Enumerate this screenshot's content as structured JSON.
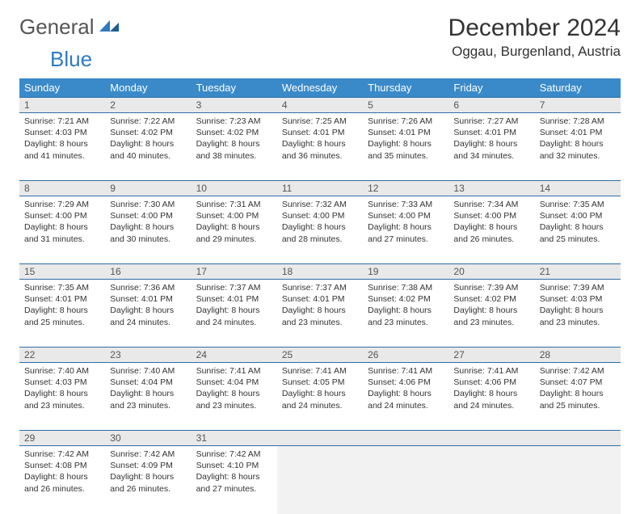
{
  "brand": {
    "general": "General",
    "blue": "Blue"
  },
  "title": "December 2024",
  "location": "Oggau, Burgenland, Austria",
  "colors": {
    "header_bg": "#3a8ac9",
    "header_text": "#ffffff",
    "daynum_bg": "#e9e9e9",
    "border": "#2f6da8",
    "brand_blue": "#2f7bbf",
    "text": "#333333"
  },
  "dayHeaders": [
    "Sunday",
    "Monday",
    "Tuesday",
    "Wednesday",
    "Thursday",
    "Friday",
    "Saturday"
  ],
  "weeks": [
    [
      {
        "n": "1",
        "sr": "7:21 AM",
        "ss": "4:03 PM",
        "dl": "8 hours and 41 minutes."
      },
      {
        "n": "2",
        "sr": "7:22 AM",
        "ss": "4:02 PM",
        "dl": "8 hours and 40 minutes."
      },
      {
        "n": "3",
        "sr": "7:23 AM",
        "ss": "4:02 PM",
        "dl": "8 hours and 38 minutes."
      },
      {
        "n": "4",
        "sr": "7:25 AM",
        "ss": "4:01 PM",
        "dl": "8 hours and 36 minutes."
      },
      {
        "n": "5",
        "sr": "7:26 AM",
        "ss": "4:01 PM",
        "dl": "8 hours and 35 minutes."
      },
      {
        "n": "6",
        "sr": "7:27 AM",
        "ss": "4:01 PM",
        "dl": "8 hours and 34 minutes."
      },
      {
        "n": "7",
        "sr": "7:28 AM",
        "ss": "4:01 PM",
        "dl": "8 hours and 32 minutes."
      }
    ],
    [
      {
        "n": "8",
        "sr": "7:29 AM",
        "ss": "4:00 PM",
        "dl": "8 hours and 31 minutes."
      },
      {
        "n": "9",
        "sr": "7:30 AM",
        "ss": "4:00 PM",
        "dl": "8 hours and 30 minutes."
      },
      {
        "n": "10",
        "sr": "7:31 AM",
        "ss": "4:00 PM",
        "dl": "8 hours and 29 minutes."
      },
      {
        "n": "11",
        "sr": "7:32 AM",
        "ss": "4:00 PM",
        "dl": "8 hours and 28 minutes."
      },
      {
        "n": "12",
        "sr": "7:33 AM",
        "ss": "4:00 PM",
        "dl": "8 hours and 27 minutes."
      },
      {
        "n": "13",
        "sr": "7:34 AM",
        "ss": "4:00 PM",
        "dl": "8 hours and 26 minutes."
      },
      {
        "n": "14",
        "sr": "7:35 AM",
        "ss": "4:00 PM",
        "dl": "8 hours and 25 minutes."
      }
    ],
    [
      {
        "n": "15",
        "sr": "7:35 AM",
        "ss": "4:01 PM",
        "dl": "8 hours and 25 minutes."
      },
      {
        "n": "16",
        "sr": "7:36 AM",
        "ss": "4:01 PM",
        "dl": "8 hours and 24 minutes."
      },
      {
        "n": "17",
        "sr": "7:37 AM",
        "ss": "4:01 PM",
        "dl": "8 hours and 24 minutes."
      },
      {
        "n": "18",
        "sr": "7:37 AM",
        "ss": "4:01 PM",
        "dl": "8 hours and 23 minutes."
      },
      {
        "n": "19",
        "sr": "7:38 AM",
        "ss": "4:02 PM",
        "dl": "8 hours and 23 minutes."
      },
      {
        "n": "20",
        "sr": "7:39 AM",
        "ss": "4:02 PM",
        "dl": "8 hours and 23 minutes."
      },
      {
        "n": "21",
        "sr": "7:39 AM",
        "ss": "4:03 PM",
        "dl": "8 hours and 23 minutes."
      }
    ],
    [
      {
        "n": "22",
        "sr": "7:40 AM",
        "ss": "4:03 PM",
        "dl": "8 hours and 23 minutes."
      },
      {
        "n": "23",
        "sr": "7:40 AM",
        "ss": "4:04 PM",
        "dl": "8 hours and 23 minutes."
      },
      {
        "n": "24",
        "sr": "7:41 AM",
        "ss": "4:04 PM",
        "dl": "8 hours and 23 minutes."
      },
      {
        "n": "25",
        "sr": "7:41 AM",
        "ss": "4:05 PM",
        "dl": "8 hours and 24 minutes."
      },
      {
        "n": "26",
        "sr": "7:41 AM",
        "ss": "4:06 PM",
        "dl": "8 hours and 24 minutes."
      },
      {
        "n": "27",
        "sr": "7:41 AM",
        "ss": "4:06 PM",
        "dl": "8 hours and 24 minutes."
      },
      {
        "n": "28",
        "sr": "7:42 AM",
        "ss": "4:07 PM",
        "dl": "8 hours and 25 minutes."
      }
    ],
    [
      {
        "n": "29",
        "sr": "7:42 AM",
        "ss": "4:08 PM",
        "dl": "8 hours and 26 minutes."
      },
      {
        "n": "30",
        "sr": "7:42 AM",
        "ss": "4:09 PM",
        "dl": "8 hours and 26 minutes."
      },
      {
        "n": "31",
        "sr": "7:42 AM",
        "ss": "4:10 PM",
        "dl": "8 hours and 27 minutes."
      },
      null,
      null,
      null,
      null
    ]
  ],
  "labels": {
    "sunrise": "Sunrise:",
    "sunset": "Sunset:",
    "daylight": "Daylight:"
  }
}
